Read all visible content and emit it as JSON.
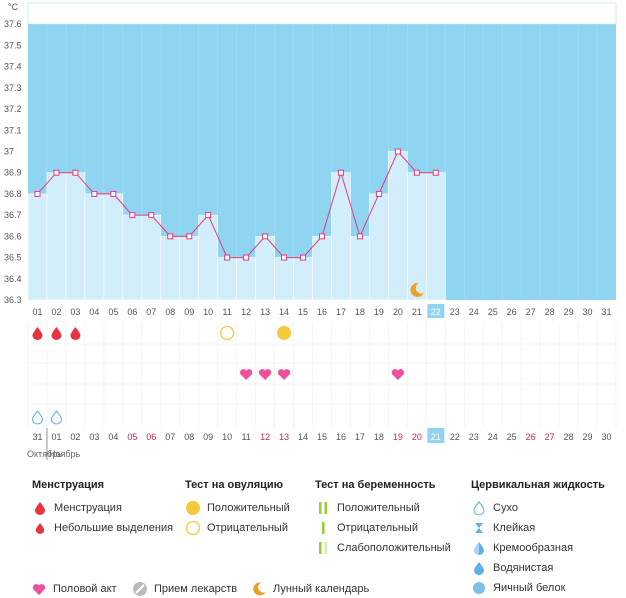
{
  "chart_data": {
    "type": "line",
    "unit_label": "°C",
    "ylim": [
      36.3,
      37.7
    ],
    "y_ticks": [
      "37.6",
      "37.5",
      "37.4",
      "37.3",
      "37.2",
      "37.1",
      "37",
      "36.9",
      "36.8",
      "36.7",
      "36.6",
      "36.5",
      "36.4",
      "36.3"
    ],
    "cycle_days": [
      "01",
      "02",
      "03",
      "04",
      "05",
      "06",
      "07",
      "08",
      "09",
      "10",
      "11",
      "12",
      "13",
      "14",
      "15",
      "16",
      "17",
      "18",
      "19",
      "20",
      "21",
      "22",
      "23",
      "24",
      "25",
      "26",
      "27",
      "28",
      "29",
      "30",
      "31"
    ],
    "temperatures": [
      36.8,
      36.9,
      36.9,
      36.8,
      36.8,
      36.7,
      36.7,
      36.6,
      36.6,
      36.7,
      36.5,
      36.5,
      36.6,
      36.5,
      36.5,
      36.6,
      36.9,
      36.6,
      36.8,
      37.0,
      36.9,
      36.9
    ],
    "current_day_index": 21,
    "calendar_dates": [
      {
        "label": "31",
        "red": false
      },
      {
        "label": "01",
        "red": false
      },
      {
        "label": "02",
        "red": false
      },
      {
        "label": "03",
        "red": false
      },
      {
        "label": "04",
        "red": false
      },
      {
        "label": "05",
        "red": true
      },
      {
        "label": "06",
        "red": true
      },
      {
        "label": "07",
        "red": false
      },
      {
        "label": "08",
        "red": false
      },
      {
        "label": "09",
        "red": false
      },
      {
        "label": "10",
        "red": false
      },
      {
        "label": "11",
        "red": false
      },
      {
        "label": "12",
        "red": true
      },
      {
        "label": "13",
        "red": true
      },
      {
        "label": "14",
        "red": false
      },
      {
        "label": "15",
        "red": false
      },
      {
        "label": "16",
        "red": false
      },
      {
        "label": "17",
        "red": false
      },
      {
        "label": "18",
        "red": false
      },
      {
        "label": "19",
        "red": true
      },
      {
        "label": "20",
        "red": true
      },
      {
        "label": "21",
        "red": false
      },
      {
        "label": "22",
        "red": false
      },
      {
        "label": "23",
        "red": false
      },
      {
        "label": "24",
        "red": false
      },
      {
        "label": "25",
        "red": false
      },
      {
        "label": "26",
        "red": true
      },
      {
        "label": "27",
        "red": true
      },
      {
        "label": "28",
        "red": false
      },
      {
        "label": "29",
        "red": false
      },
      {
        "label": "30",
        "red": false
      }
    ],
    "month_labels": [
      {
        "text": "Октябрь",
        "day_index": 0
      },
      {
        "text": "Ноябрь",
        "day_index": 1
      }
    ],
    "markers": {
      "menstruation_days": [
        0,
        1,
        2
      ],
      "ovulation_negative_days": [
        10
      ],
      "ovulation_positive_days": [
        13
      ],
      "intercourse_days": [
        11,
        12,
        13,
        19
      ],
      "fluid_dry_days": [
        0,
        1
      ],
      "moon_days": [
        20
      ]
    },
    "colors": {
      "plot_bg": "#8fd5f1",
      "bar_fill": "#d2eefb",
      "line": "#e8387c",
      "current_day": "#8fd5f1",
      "red_date": "#d0264a",
      "blood": "#e8343c",
      "ovulation": "#f6c93b",
      "heart": "#ef4f9c",
      "water": "#5eb1e4",
      "moon": "#f0a020",
      "test_green": "#9acb37"
    }
  },
  "legend": {
    "menstruation": {
      "title": "Менструация",
      "items": [
        {
          "label": "Менструация",
          "icon": "blood-drop-icon"
        },
        {
          "label": "Небольшие выделения",
          "icon": "small-drop-icon"
        }
      ]
    },
    "ovulation_test": {
      "title": "Тест на овуляцию",
      "items": [
        {
          "label": "Положительный",
          "icon": "filled-circle-icon"
        },
        {
          "label": "Отрицательный",
          "icon": "outline-circle-icon"
        }
      ]
    },
    "pregnancy_test": {
      "title": "Тест на беременность",
      "items": [
        {
          "label": "Положительный",
          "icon": "double-line-icon"
        },
        {
          "label": "Отрицательный",
          "icon": "single-line-icon"
        },
        {
          "label": "Слабоположительный",
          "icon": "faint-line-icon"
        }
      ]
    },
    "cervical_fluid": {
      "title": "Цервикальная жидкость",
      "items": [
        {
          "label": "Сухо",
          "icon": "outline-drop-icon"
        },
        {
          "label": "Клейкая",
          "icon": "hourglass-icon"
        },
        {
          "label": "Кремообразная",
          "icon": "creamy-drop-icon"
        },
        {
          "label": "Водянистая",
          "icon": "watery-drop-icon"
        },
        {
          "label": "Яичный белок",
          "icon": "egg-white-icon"
        }
      ]
    },
    "misc": [
      {
        "label": "Половой акт",
        "icon": "heart-icon"
      },
      {
        "label": "Прием лекарств",
        "icon": "pill-icon"
      },
      {
        "label": "Лунный календарь",
        "icon": "moon-icon"
      }
    ]
  }
}
